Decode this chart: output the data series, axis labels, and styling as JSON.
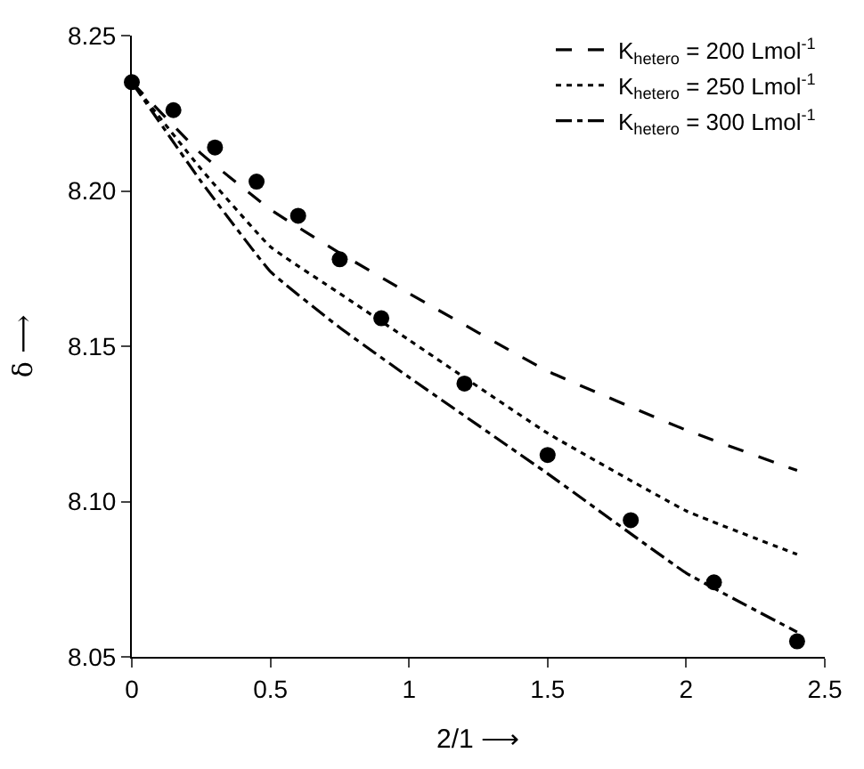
{
  "chart_data": {
    "type": "line",
    "xlabel": "2/1 ⟶",
    "ylabel": "δ ⟶",
    "xlim": [
      0,
      2.5
    ],
    "ylim": [
      8.05,
      8.25
    ],
    "xticks": [
      0,
      {
        "value": 0.5,
        "label": "0.5"
      },
      1,
      {
        "value": 1.5,
        "label": "1.5"
      },
      2,
      {
        "value": 2.5,
        "label": "2.5"
      }
    ],
    "yticks": [
      {
        "value": 8.05,
        "label": "8.05"
      },
      {
        "value": 8.1,
        "label": "8.10"
      },
      {
        "value": 8.15,
        "label": "8.15"
      },
      {
        "value": 8.2,
        "label": "8.20"
      },
      {
        "value": 8.25,
        "label": "8.25"
      }
    ],
    "legend": "top right",
    "series": [
      {
        "name": "K$_{hetero}$ = 200 Lmol$^{-1}$",
        "color": "#000000",
        "line_style": "dashed",
        "marker": "none",
        "x": [
          0,
          0.25,
          0.5,
          0.75,
          1,
          1.5,
          2,
          2.4
        ],
        "values": [
          8.235,
          8.212,
          8.194,
          8.18,
          8.167,
          8.142,
          8.123,
          8.11
        ]
      },
      {
        "name": "K$_{hetero}$ = 250 Lmol$^{-1}$",
        "color": "#000000",
        "line_style": "dotted",
        "marker": "none",
        "x": [
          0,
          0.25,
          0.5,
          0.75,
          1,
          1.5,
          2,
          2.4
        ],
        "values": [
          8.235,
          8.207,
          8.182,
          8.167,
          8.152,
          8.122,
          8.097,
          8.083
        ]
      },
      {
        "name": "K$_{hetero}$ = 300 Lmol$^{-1}$",
        "color": "#000000",
        "line_style": "dashdot",
        "marker": "none",
        "x": [
          0,
          0.25,
          0.5,
          0.75,
          1,
          1.5,
          2,
          2.4
        ],
        "values": [
          8.235,
          8.203,
          8.174,
          8.156,
          8.14,
          8.109,
          8.077,
          8.058
        ]
      },
      {
        "type": "scatter",
        "color": "#000000",
        "marker": "circle",
        "x": [
          0,
          0.15,
          0.3,
          0.45,
          0.6,
          0.75,
          0.9,
          1.2,
          1.5,
          1.8,
          2.1,
          2.4
        ],
        "values": [
          8.235,
          8.226,
          8.214,
          8.203,
          8.192,
          8.178,
          8.159,
          8.138,
          8.115,
          8.094,
          8.074,
          8.055
        ]
      }
    ]
  }
}
